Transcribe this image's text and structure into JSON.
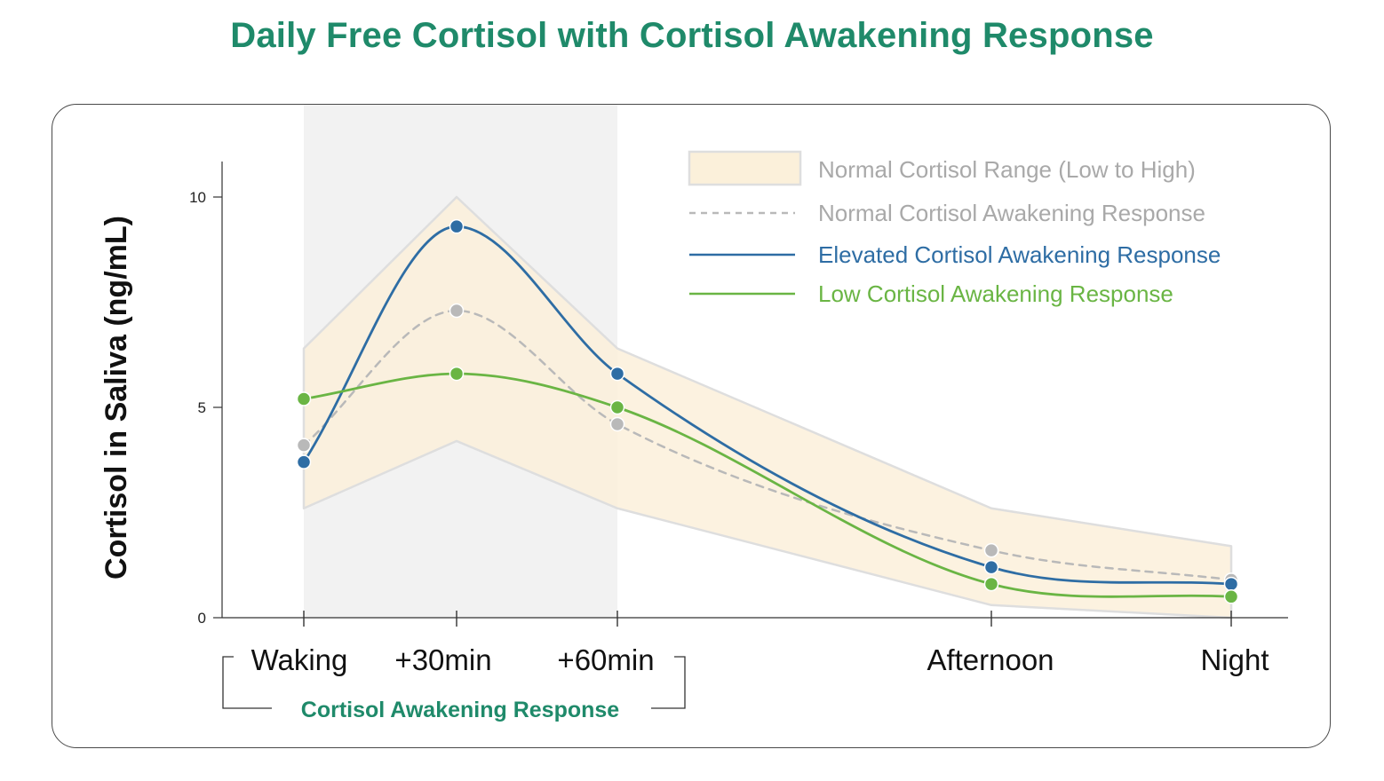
{
  "title": "Daily Free Cortisol with Cortisol Awakening Response",
  "chart_data": {
    "type": "line",
    "title": "Daily Free Cortisol with Cortisol Awakening Response",
    "ylabel": "Cortisol in Saliva (ng/mL)",
    "xlabel": "",
    "categories": [
      "Waking",
      "+30min",
      "+60min",
      "Afternoon",
      "Night"
    ],
    "x_positions_note_free": true,
    "ylim": [
      0,
      11
    ],
    "yticks": [
      "0",
      "5",
      "10"
    ],
    "ytick_values": [
      0,
      5,
      10
    ],
    "range": {
      "name": "Normal Cortisol Range (Low to High)",
      "low": [
        2.6,
        4.2,
        2.6,
        0.3,
        0.0
      ],
      "high": [
        6.4,
        10.0,
        6.4,
        2.6,
        1.7
      ]
    },
    "series": [
      {
        "name": "Normal Cortisol Awakening Response",
        "style": "dashed",
        "values": [
          4.1,
          7.3,
          4.6,
          1.6,
          0.9
        ]
      },
      {
        "name": "Elevated Cortisol Awakening Response",
        "style": "solid",
        "values": [
          3.7,
          9.3,
          5.8,
          1.2,
          0.8
        ]
      },
      {
        "name": "Low Cortisol Awakening Response",
        "style": "solid",
        "values": [
          5.2,
          5.8,
          5.0,
          0.8,
          0.5
        ]
      }
    ],
    "bracket_label": "Cortisol Awakening Response",
    "shaded_region_categories": [
      "Waking",
      "+60min"
    ],
    "grid": false,
    "legend_position": "top-right"
  },
  "colors": {
    "title": "#1f8a6a",
    "range_fill": "#fbf0da",
    "range_edge": "#dedede",
    "shade": "#f2f2f2",
    "normal": "#b9b9b9",
    "elevated": "#2e6da4",
    "low": "#6ab544",
    "axis": "#333333",
    "bracket_text": "#1f8a6a"
  }
}
